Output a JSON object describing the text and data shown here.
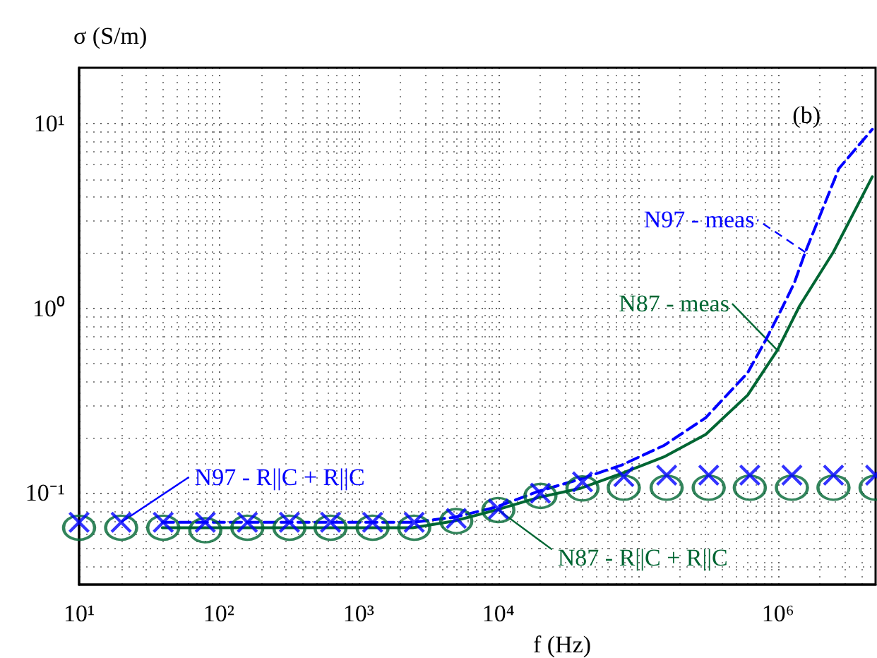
{
  "chart_data": {
    "type": "line",
    "xlabel": "f (Hz)",
    "ylabel": "σ (S/m)",
    "log": "xy",
    "grid": true,
    "xlim": [
      10,
      5000000
    ],
    "ylim": [
      0.032,
      20
    ],
    "xticks": [
      {
        "value": 10,
        "label": "10¹"
      },
      {
        "value": 100,
        "label": "10²"
      },
      {
        "value": 1000,
        "label": "10³"
      },
      {
        "value": 10000,
        "label": "10⁴"
      },
      {
        "value": 100000,
        "label": null
      },
      {
        "value": 1000000,
        "label": "10⁶"
      }
    ],
    "yticks": [
      {
        "value": 0.1,
        "label": "10⁻¹"
      },
      {
        "value": 1,
        "label": "10⁰"
      },
      {
        "value": 10,
        "label": "10¹"
      }
    ],
    "series": [
      {
        "name": "N97 - meas",
        "line_style": "dashed",
        "marker": "none",
        "color": "#0000ff",
        "x": [
          39.4,
          2443,
          4830,
          9640,
          19200,
          38400,
          76600,
          153000,
          305000,
          608000,
          824000,
          1090000,
          1310000,
          1570000,
          2730000,
          4740000
        ],
        "values": [
          0.0695,
          0.0695,
          0.074,
          0.084,
          0.102,
          0.119,
          0.142,
          0.181,
          0.256,
          0.448,
          0.68,
          1.03,
          1.37,
          2.01,
          5.7,
          9.3
        ]
      },
      {
        "name": "N87 - meas",
        "line_style": "solid",
        "marker": "none",
        "color": "#006633",
        "x": [
          39.4,
          2443,
          4830,
          9640,
          19200,
          38400,
          76600,
          153000,
          305000,
          608000,
          991000,
          1430000,
          2490000,
          4740000
        ],
        "values": [
          0.065,
          0.065,
          0.0706,
          0.081,
          0.0945,
          0.106,
          0.128,
          0.157,
          0.208,
          0.339,
          0.593,
          1.03,
          2.01,
          5.15
        ]
      },
      {
        "name": "N97 - R||C + R||C",
        "type": "scatter",
        "marker": "cross",
        "color": "#0000ff",
        "x": [
          10,
          20,
          40,
          80,
          160,
          320,
          630,
          1260,
          2500,
          5000,
          10000,
          20000,
          40000,
          79000,
          160000,
          320000,
          630000,
          1260000,
          2500000,
          5000000
        ],
        "values": [
          0.0695,
          0.0695,
          0.0695,
          0.0695,
          0.0695,
          0.0695,
          0.0695,
          0.0695,
          0.0695,
          0.073,
          0.082,
          0.1,
          0.115,
          0.123,
          0.125,
          0.125,
          0.125,
          0.125,
          0.125,
          0.125
        ]
      },
      {
        "name": "N87 - R||C + R||C",
        "type": "scatter",
        "marker": "circle",
        "color": "#006633",
        "x": [
          10,
          20,
          40,
          80,
          160,
          320,
          630,
          1260,
          2500,
          5000,
          10000,
          20000,
          40000,
          79000,
          160000,
          320000,
          630000,
          1260000,
          2500000,
          5000000
        ],
        "values": [
          0.065,
          0.065,
          0.065,
          0.063,
          0.065,
          0.065,
          0.065,
          0.065,
          0.065,
          0.0706,
          0.081,
          0.0966,
          0.106,
          0.107,
          0.107,
          0.107,
          0.107,
          0.107,
          0.107,
          0.107
        ]
      }
    ],
    "annotations": [
      "(b)"
    ]
  }
}
